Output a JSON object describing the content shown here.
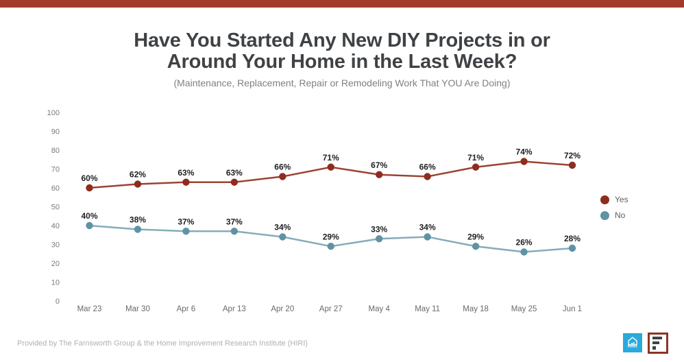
{
  "page": {
    "topbar_color": "#a23a2b",
    "background_color": "#ffffff"
  },
  "header": {
    "title_line1": "Have You Started Any New DIY Projects in or",
    "title_line2": "Around Your Home in the Last Week?",
    "subtitle": "(Maintenance, Replacement, Repair or Remodeling Work That YOU Are Doing)"
  },
  "chart_data": {
    "type": "line",
    "title": "Have You Started Any New DIY Projects in or Around Your Home in the Last Week?",
    "subtitle": "(Maintenance, Replacement, Repair or Remodeling Work That YOU Are Doing)",
    "categories": [
      "Mar 23",
      "Mar 30",
      "Apr 6",
      "Apr 13",
      "Apr 20",
      "Apr 27",
      "May 4",
      "May 11",
      "May 18",
      "May 25",
      "Jun 1"
    ],
    "series": [
      {
        "name": "Yes",
        "values": [
          60,
          62,
          63,
          63,
          66,
          71,
          67,
          66,
          71,
          74,
          72
        ],
        "line_color": "#9c4334",
        "marker_color": "#8c2d1f"
      },
      {
        "name": "No",
        "values": [
          40,
          38,
          37,
          37,
          34,
          29,
          33,
          34,
          29,
          26,
          28
        ],
        "line_color": "#85acb9",
        "marker_color": "#5e93a4"
      }
    ],
    "xlabel": "",
    "ylabel": "",
    "ylim": [
      0,
      100
    ],
    "ytick_step": 10,
    "data_label_suffix": "%",
    "grid": false,
    "legend_position": "right"
  },
  "legend": {
    "items": [
      {
        "label": "Yes",
        "color": "#8c2d1f"
      },
      {
        "label": "No",
        "color": "#5e93a4"
      }
    ]
  },
  "footer": {
    "credit": "Provided by The Farnsworth Group & the Home Improvement Research Institute (HIRI)",
    "logos": [
      {
        "name": "hiri-logo",
        "text": "HIRI",
        "color": "#2aa9dc"
      },
      {
        "name": "farnsworth-group-logo",
        "color": "#8c3327"
      }
    ]
  }
}
